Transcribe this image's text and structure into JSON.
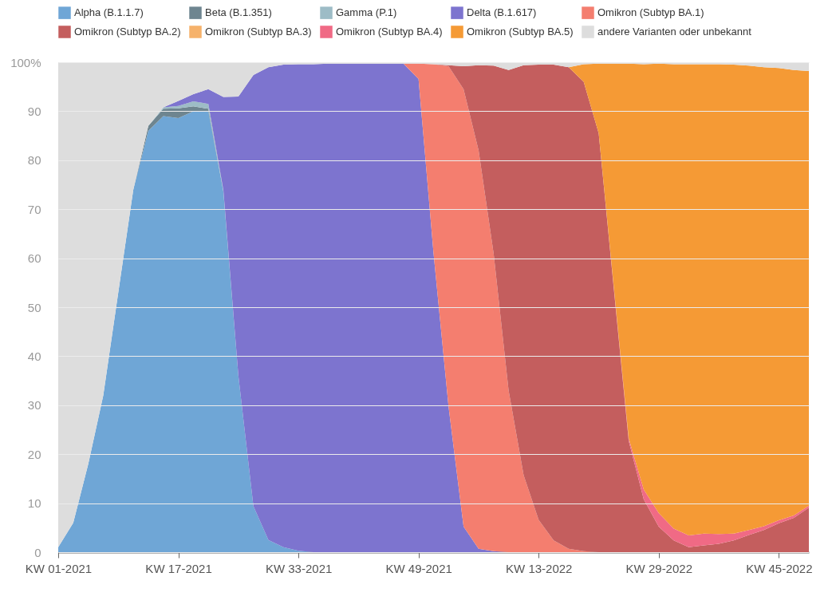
{
  "chart_data": {
    "type": "area",
    "stacked": true,
    "legend": "top left",
    "grid": "y",
    "categories": [
      "KW 01-2021",
      null,
      null,
      null,
      null,
      null,
      null,
      null,
      "KW 17-2021",
      null,
      null,
      null,
      null,
      null,
      null,
      null,
      "KW 33-2021",
      null,
      null,
      null,
      null,
      null,
      null,
      null,
      "KW 49-2021",
      null,
      null,
      null,
      null,
      null,
      null,
      null,
      "KW 13-2022",
      null,
      null,
      null,
      null,
      null,
      null,
      null,
      "KW 29-2022",
      null,
      null,
      null,
      null,
      null,
      null,
      null,
      "KW 45-2022",
      null,
      null
    ],
    "ylim": [
      0,
      100
    ],
    "yticks": [
      0,
      10,
      20,
      30,
      40,
      50,
      60,
      70,
      80,
      90,
      {
        "value": 100,
        "label": "100%"
      }
    ],
    "series": [
      {
        "name": "Alpha (B.1.1.7)",
        "color": "#6fa6d6",
        "values": [
          1,
          6,
          18,
          32,
          53,
          74,
          86,
          89,
          88.6,
          90,
          90,
          73.6,
          36,
          9.4,
          2.5,
          1,
          0.3,
          0,
          null,
          null,
          null,
          null,
          null,
          null,
          null,
          null,
          null,
          null,
          null,
          null,
          null,
          null,
          null,
          null,
          null,
          null,
          null,
          null,
          null,
          null,
          null,
          null,
          null,
          null,
          null,
          null,
          null,
          null,
          null,
          null,
          null
        ]
      },
      {
        "name": "Beta (B.1.351)",
        "color": "#6e8590",
        "values": [
          null,
          null,
          null,
          null,
          null,
          0,
          1,
          1.5,
          2,
          1,
          0.5,
          0,
          null,
          null,
          null,
          null,
          null,
          null,
          null,
          null,
          null,
          null,
          null,
          null,
          null,
          null,
          null,
          null,
          null,
          null,
          null,
          null,
          null,
          null,
          null,
          null,
          null,
          null,
          null,
          null,
          null,
          null,
          null,
          null,
          null,
          null,
          null,
          null,
          null,
          null,
          null
        ]
      },
      {
        "name": "Gamma (P.1)",
        "color": "#9dbcc6",
        "values": [
          null,
          null,
          null,
          null,
          null,
          null,
          0,
          0.3,
          0.5,
          1,
          1,
          0.3,
          0,
          null,
          null,
          null,
          null,
          null,
          null,
          null,
          null,
          null,
          null,
          null,
          null,
          null,
          null,
          null,
          null,
          null,
          null,
          null,
          null,
          null,
          null,
          null,
          null,
          null,
          null,
          null,
          null,
          null,
          null,
          null,
          null,
          null,
          null,
          null,
          null,
          null,
          null
        ]
      },
      {
        "name": "Delta (B.1.617)",
        "color": "#7d74cf",
        "values": [
          null,
          null,
          null,
          null,
          null,
          null,
          null,
          0,
          1,
          1.5,
          3,
          19,
          57,
          88,
          96.5,
          98.5,
          99.3,
          99.6,
          99.7,
          99.7,
          99.7,
          99.7,
          99.7,
          99.7,
          96.6,
          61,
          29.7,
          5.2,
          0.7,
          0.2,
          0,
          null,
          null,
          null,
          null,
          null,
          null,
          null,
          null,
          null,
          null,
          null,
          null,
          null,
          null,
          null,
          null,
          null,
          null,
          null,
          null
        ]
      },
      {
        "name": "Omikron (Subtyp BA.1)",
        "color": "#f47e6f",
        "values": [
          null,
          null,
          null,
          null,
          null,
          null,
          null,
          null,
          null,
          null,
          null,
          null,
          null,
          null,
          null,
          null,
          null,
          null,
          null,
          null,
          null,
          null,
          null,
          0,
          3.1,
          38.6,
          69.5,
          89.3,
          81.3,
          60.8,
          33,
          15.7,
          6.6,
          2.4,
          0.7,
          0.2,
          0,
          null,
          null,
          null,
          null,
          null,
          null,
          null,
          null,
          null,
          null,
          null,
          null,
          null,
          null
        ]
      },
      {
        "name": "Omikron (Subtyp BA.2)",
        "color": "#c45e5e",
        "values": [
          null,
          null,
          null,
          null,
          null,
          null,
          null,
          null,
          null,
          null,
          null,
          null,
          null,
          null,
          null,
          null,
          null,
          null,
          null,
          null,
          null,
          null,
          null,
          null,
          null,
          0,
          0.2,
          4.7,
          17.4,
          38.3,
          65.4,
          83.7,
          92.9,
          97.1,
          98.3,
          95.8,
          85.5,
          54,
          22.7,
          10.8,
          5.2,
          2.4,
          1,
          1.4,
          1.7,
          2.4,
          3.5,
          4.5,
          5.9,
          7,
          9.1
        ]
      },
      {
        "name": "Omikron (Subtyp BA.3)",
        "color": "#f6b26b",
        "values": [
          null,
          null,
          null,
          null,
          null,
          null,
          null,
          null,
          null,
          null,
          null,
          null,
          null,
          null,
          null,
          null,
          null,
          null,
          null,
          null,
          null,
          null,
          null,
          null,
          null,
          null,
          null,
          null,
          null,
          null,
          null,
          null,
          null,
          null,
          null,
          null,
          null,
          null,
          null,
          null,
          null,
          null,
          null,
          null,
          null,
          null,
          null,
          null,
          null,
          null,
          null
        ]
      },
      {
        "name": "Omikron (Subtyp BA.4)",
        "color": "#f06a85",
        "values": [
          null,
          null,
          null,
          null,
          null,
          null,
          null,
          null,
          null,
          null,
          null,
          null,
          null,
          null,
          null,
          null,
          null,
          null,
          null,
          null,
          null,
          null,
          null,
          null,
          null,
          null,
          null,
          null,
          null,
          null,
          null,
          null,
          null,
          null,
          null,
          null,
          0,
          0.3,
          0.5,
          2,
          2.8,
          2.4,
          2.4,
          2.4,
          2,
          1.4,
          1,
          0.8,
          0.6,
          0.5,
          0.4
        ]
      },
      {
        "name": "Omikron (Subtyp BA.5)",
        "color": "#f59a35",
        "values": [
          null,
          null,
          null,
          null,
          null,
          null,
          null,
          null,
          null,
          null,
          null,
          null,
          null,
          null,
          null,
          null,
          null,
          null,
          null,
          null,
          null,
          null,
          null,
          null,
          null,
          null,
          null,
          null,
          null,
          null,
          null,
          null,
          null,
          null,
          0,
          3.6,
          14.2,
          45.4,
          76.5,
          86.8,
          91.7,
          94.8,
          96.2,
          95.8,
          95.9,
          95.7,
          94.8,
          93.7,
          92.3,
          90.9,
          88.7
        ]
      },
      {
        "name": "andere Varianten oder unbekannt",
        "color": "#dddddd",
        "values": [
          99,
          94,
          82,
          68,
          47,
          26,
          13,
          9.2,
          7.9,
          6.5,
          5.5,
          7.1,
          7,
          2.6,
          1,
          0.5,
          0.4,
          0.4,
          0.3,
          0.3,
          0.3,
          0.3,
          0.3,
          0.3,
          0.3,
          0.4,
          0.6,
          0.8,
          0.6,
          0.7,
          1.6,
          0.6,
          0.5,
          0.5,
          1,
          0.4,
          0.3,
          0.3,
          0.3,
          0.4,
          0.3,
          0.4,
          0.4,
          0.4,
          0.4,
          0.5,
          0.7,
          1,
          1.2,
          1.6,
          1.8
        ]
      }
    ]
  }
}
